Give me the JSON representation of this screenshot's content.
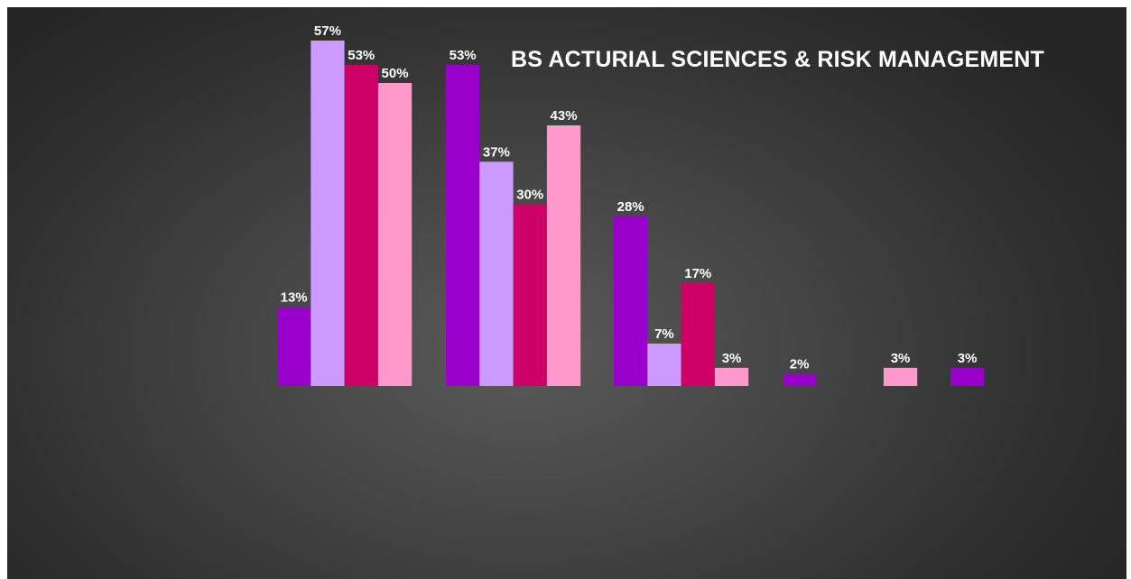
{
  "chart_data": {
    "type": "bar",
    "title": "BS ACTURIAL SCIENCES & RISK MANAGEMENT",
    "xlabel": "",
    "ylabel": "",
    "ylim": [
      0,
      60
    ],
    "grid": false,
    "categories": [
      "",
      "",
      "",
      "",
      ""
    ],
    "series": [
      {
        "color": "#9900cc",
        "values": [
          13,
          53,
          28,
          2,
          3
        ]
      },
      {
        "color": "#cc99ff",
        "values": [
          57,
          37,
          7,
          null,
          null
        ]
      },
      {
        "color": "#cc0066",
        "values": [
          53,
          30,
          17,
          null,
          null
        ]
      },
      {
        "color": "#ff99cc",
        "values": [
          50,
          43,
          3,
          3,
          null
        ]
      }
    ],
    "data_labels": [
      [
        "13%",
        "53%",
        "28%",
        "2%",
        "3%"
      ],
      [
        "57%",
        "37%",
        "7%",
        "",
        ""
      ],
      [
        "53%",
        "30%",
        "17%",
        "",
        ""
      ],
      [
        "50%",
        "43%",
        "3%",
        "3%",
        ""
      ]
    ]
  }
}
